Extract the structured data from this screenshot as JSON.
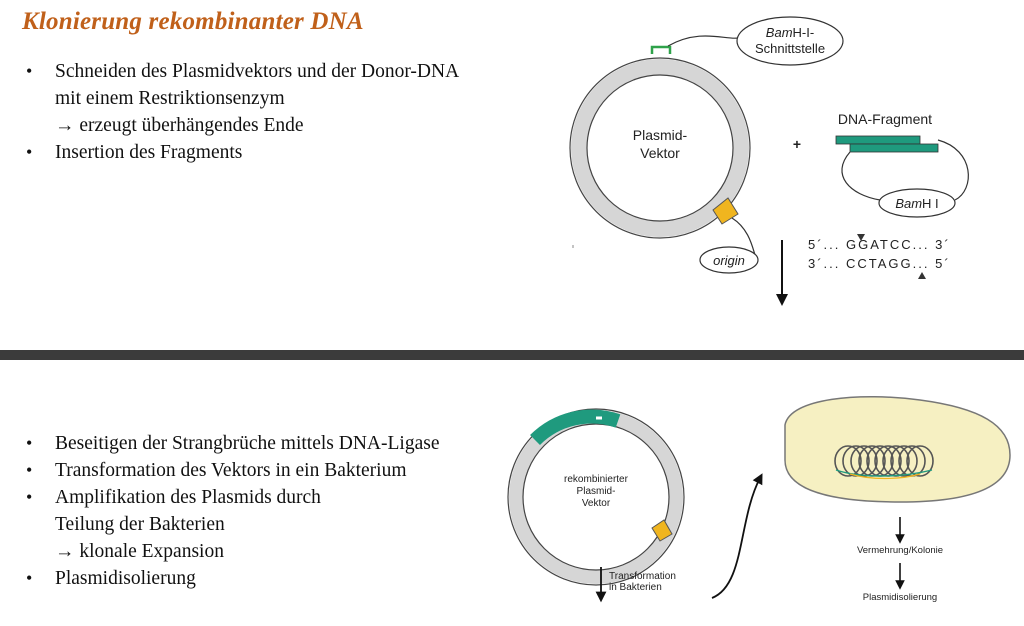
{
  "title": "Klonierung rekombinanter DNA",
  "top_bullets": [
    {
      "main": "Schneiden des Plasmidvektors und der Donor-DNA",
      "line2": "mit einem Restriktionsenzym",
      "line3": "→ erzeugt überhängendes Ende"
    },
    {
      "main": "Insertion des Fragments"
    }
  ],
  "bottom_bullets": [
    {
      "main": "Beseitigen der Strangbrüche mittels DNA-Ligase"
    },
    {
      "main": "Transformation des Vektors in ein Bakterium"
    },
    {
      "main": "Amplifikation des Plasmids durch",
      "line2": "Teilung der Bakterien",
      "line3": "→ klonale Expansion"
    },
    {
      "main": "Plasmidisolierung"
    }
  ],
  "diagram_top": {
    "callout_bamh1_italic": "Bam",
    "callout_bamh1_rest": "H-I-",
    "callout_bamh1_line2": "Schnittstelle",
    "plasmid_label_1": "Plasmid-",
    "plasmid_label_2": "Vektor",
    "plus": "+",
    "fragment_label": "DNA-Fragment",
    "fragment_enzyme_italic": "Bam",
    "fragment_enzyme_rest": "H I",
    "origin_label": "origin",
    "seq_top": "5´... GGATCC... 3´",
    "seq_bottom": "3´... CCTAGG... 5´"
  },
  "diagram_bottom": {
    "recomb_label_1": "rekombinierter",
    "recomb_label_2": "Plasmid-",
    "recomb_label_3": "Vektor",
    "transformation_1": "Transformation",
    "transformation_2": "in Bakterien",
    "vermehrung": "Vermehrung/Kolonie",
    "plasmidisolierung": "Plasmidisolierung"
  },
  "colors": {
    "title": "#c0601a",
    "plasmid_ring": "#d6d6d6",
    "dna_fragment": "#1f9a7e",
    "origin": "#f0b51f",
    "bacterium": "#f6f0c2",
    "divider": "#3b3b3b"
  }
}
